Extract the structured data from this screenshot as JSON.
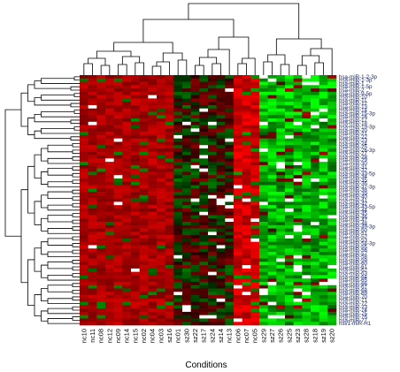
{
  "chart_data": {
    "type": "heatmap",
    "xlabel": "Conditions",
    "columns": [
      "nc10",
      "nc11",
      "nc08",
      "nc12",
      "nc09",
      "nc14",
      "nc15",
      "nc02",
      "nc04",
      "nc03",
      "sz16",
      "nc01",
      "sz30",
      "sz22",
      "sz17",
      "sz24",
      "sz14",
      "nc13",
      "nc06",
      "nc07",
      "nc05",
      "sz29",
      "sz27",
      "sz26",
      "sz25",
      "sz23",
      "sz28",
      "sz18",
      "sz19",
      "sz20"
    ],
    "rows": [
      "hsa-miR-1-2-3p",
      "hsa-miR-1-3p",
      "hsa-miR-1",
      "hsa-miR-1-5p",
      "hsa-miR-2",
      "hsa-miR-9-5p",
      "hsa-miR-10",
      "hsa-miR-11",
      "hsa-miR-12",
      "hsa-miR-13",
      "hsa-miR-14",
      "hsa-miR-15-3p",
      "hsa-miR-16",
      "hsa-miR-17",
      "hsa-miR-18",
      "hsa-miR-19-3p",
      "hsa-miR-20",
      "hsa-miR-21",
      "hsa-miR-22",
      "hsa-miR-23",
      "hsa-miR-24",
      "hsa-miR-25",
      "hsa-miR-26-3p",
      "hsa-miR-27",
      "hsa-miR-28",
      "hsa-miR-29",
      "hsa-miR-30",
      "hsa-miR-31",
      "hsa-miR-32",
      "hsa-miR-33-5p",
      "hsa-miR-34",
      "hsa-miR-35",
      "hsa-miR-36",
      "hsa-miR-37-3p",
      "hsa-miR-38",
      "hsa-miR-39",
      "hsa-miR-40",
      "hsa-miR-41",
      "hsa-miR-42",
      "hsa-miR-43-5p",
      "hsa-miR-44",
      "hsa-miR-45",
      "hsa-miR-46",
      "hsa-miR-47",
      "hsa-miR-48",
      "hsa-miR-49-3p",
      "hsa-miR-50",
      "hsa-miR-51",
      "hsa-miR-52",
      "hsa-miR-53",
      "hsa-miR-54-3p",
      "hsa-miR-55",
      "hsa-miR-56",
      "hsa-miR-57",
      "hsa-miR-58",
      "hsa-miR-59",
      "hsa-miR-60",
      "hsa-miR-61",
      "hsa-miR-62",
      "hsa-miR-63",
      "hsa-miR-64",
      "hsa-miR-65",
      "hsa-miR-66",
      "hsa-miR-67",
      "hsa-miR-68",
      "hsa-miR-69",
      "hsa-miR-70",
      "hsa-miR-71",
      "hsa-miR-72",
      "hsa-miR-73",
      "hsa-miR-74",
      "hsa-miR-75",
      "hsa-miR-76",
      "hsa-miR-77",
      "hsv1-miR-H1"
    ],
    "color_scale": {
      "low": "#00ff00",
      "mid": "#000000",
      "high": "#ff0000",
      "missing": "#ffffff"
    },
    "value_range": [
      -3,
      3
    ],
    "row_dendrogram": true,
    "column_dendrogram": true
  }
}
